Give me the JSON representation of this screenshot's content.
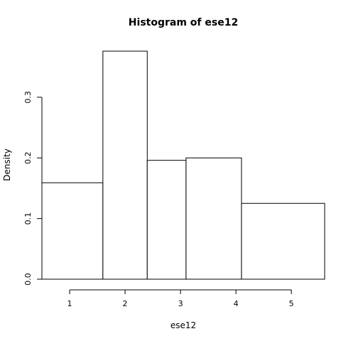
{
  "chart_data": {
    "type": "bar",
    "title": "Histogram of ese12",
    "xlabel": "ese12",
    "ylabel": "Density",
    "bins": [
      {
        "start": 0.5,
        "end": 1.6,
        "density": 0.159
      },
      {
        "start": 1.6,
        "end": 2.4,
        "density": 0.376
      },
      {
        "start": 2.4,
        "end": 3.1,
        "density": 0.196
      },
      {
        "start": 3.1,
        "end": 4.1,
        "density": 0.2
      },
      {
        "start": 4.1,
        "end": 5.6,
        "density": 0.125
      }
    ],
    "xticks": [
      1,
      2,
      3,
      4,
      5
    ],
    "xtick_labels": [
      "1",
      "2",
      "3",
      "4",
      "5"
    ],
    "yticks": [
      0.0,
      0.1,
      0.2,
      0.3
    ],
    "ytick_labels": [
      "0.0",
      "0.1",
      "0.2",
      "0.3"
    ],
    "xlim": [
      0.5,
      5.6
    ],
    "ylim": [
      0,
      0.376
    ],
    "grid": false,
    "colors": {
      "bar_fill": "#ffffff",
      "bar_stroke": "#000000"
    }
  }
}
